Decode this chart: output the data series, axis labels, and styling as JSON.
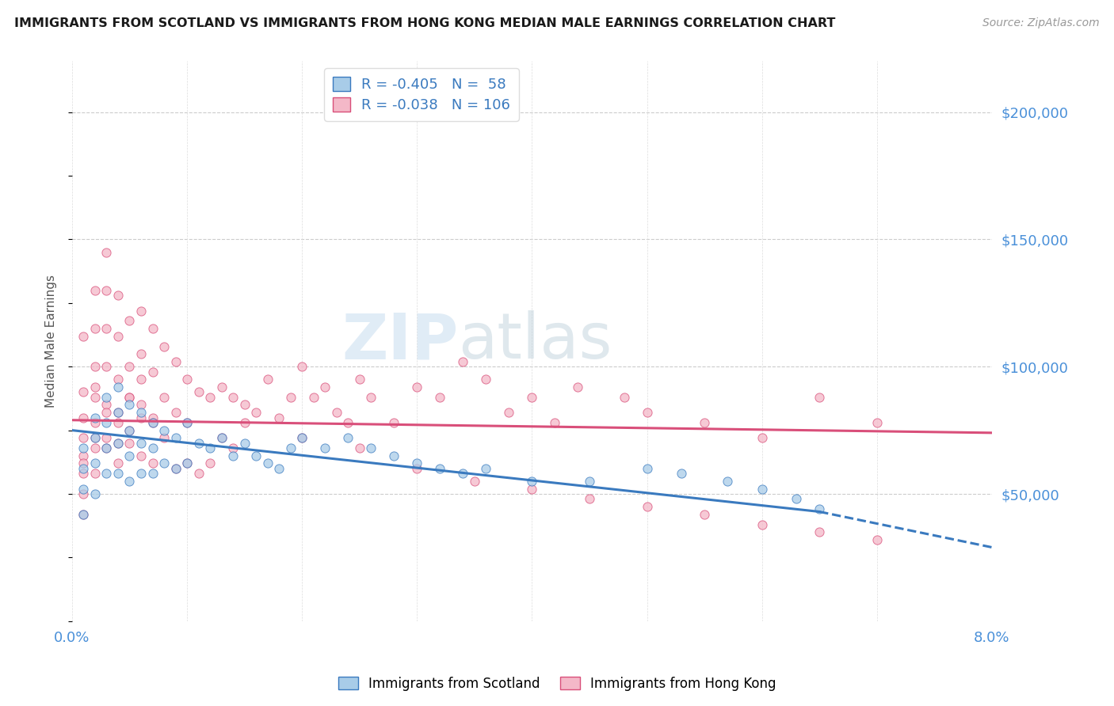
{
  "title": "IMMIGRANTS FROM SCOTLAND VS IMMIGRANTS FROM HONG KONG MEDIAN MALE EARNINGS CORRELATION CHART",
  "source": "Source: ZipAtlas.com",
  "ylabel": "Median Male Earnings",
  "x_min": 0.0,
  "x_max": 0.08,
  "y_min": 0,
  "y_max": 220000,
  "yticks": [
    0,
    50000,
    100000,
    150000,
    200000
  ],
  "xticks": [
    0.0,
    0.01,
    0.02,
    0.03,
    0.04,
    0.05,
    0.06,
    0.07,
    0.08
  ],
  "scotland_color": "#a8cce8",
  "hong_kong_color": "#f4b8c8",
  "scotland_line_color": "#3a7abf",
  "hong_kong_line_color": "#d94f7a",
  "R_scotland": -0.405,
  "N_scotland": 58,
  "R_hong_kong": -0.038,
  "N_hong_kong": 106,
  "watermark_zip": "ZIP",
  "watermark_atlas": "atlas",
  "background_color": "#ffffff",
  "scotland_line_x0": 0.0,
  "scotland_line_y0": 75000,
  "scotland_line_x1": 0.065,
  "scotland_line_y1": 43000,
  "scotland_line_dash_x1": 0.08,
  "scotland_line_dash_y1": 29000,
  "hk_line_x0": 0.0,
  "hk_line_y0": 79000,
  "hk_line_x1": 0.08,
  "hk_line_y1": 74000,
  "scotland_x": [
    0.001,
    0.001,
    0.001,
    0.001,
    0.002,
    0.002,
    0.002,
    0.002,
    0.003,
    0.003,
    0.003,
    0.003,
    0.004,
    0.004,
    0.004,
    0.004,
    0.005,
    0.005,
    0.005,
    0.005,
    0.006,
    0.006,
    0.006,
    0.007,
    0.007,
    0.007,
    0.008,
    0.008,
    0.009,
    0.009,
    0.01,
    0.01,
    0.011,
    0.012,
    0.013,
    0.014,
    0.015,
    0.016,
    0.017,
    0.018,
    0.019,
    0.02,
    0.022,
    0.024,
    0.026,
    0.028,
    0.03,
    0.032,
    0.034,
    0.036,
    0.04,
    0.045,
    0.05,
    0.053,
    0.057,
    0.06,
    0.063,
    0.065
  ],
  "scotland_y": [
    68000,
    60000,
    52000,
    42000,
    80000,
    72000,
    62000,
    50000,
    88000,
    78000,
    68000,
    58000,
    92000,
    82000,
    70000,
    58000,
    85000,
    75000,
    65000,
    55000,
    82000,
    70000,
    58000,
    78000,
    68000,
    58000,
    75000,
    62000,
    72000,
    60000,
    78000,
    62000,
    70000,
    68000,
    72000,
    65000,
    70000,
    65000,
    62000,
    60000,
    68000,
    72000,
    68000,
    72000,
    68000,
    65000,
    62000,
    60000,
    58000,
    60000,
    55000,
    55000,
    60000,
    58000,
    55000,
    52000,
    48000,
    44000
  ],
  "hong_kong_x": [
    0.001,
    0.001,
    0.001,
    0.001,
    0.001,
    0.001,
    0.001,
    0.002,
    0.002,
    0.002,
    0.002,
    0.002,
    0.002,
    0.002,
    0.003,
    0.003,
    0.003,
    0.003,
    0.003,
    0.003,
    0.004,
    0.004,
    0.004,
    0.004,
    0.004,
    0.005,
    0.005,
    0.005,
    0.005,
    0.006,
    0.006,
    0.006,
    0.007,
    0.007,
    0.007,
    0.008,
    0.008,
    0.009,
    0.009,
    0.01,
    0.01,
    0.011,
    0.012,
    0.013,
    0.014,
    0.015,
    0.016,
    0.017,
    0.018,
    0.019,
    0.02,
    0.021,
    0.022,
    0.023,
    0.024,
    0.025,
    0.026,
    0.028,
    0.03,
    0.032,
    0.034,
    0.036,
    0.038,
    0.04,
    0.042,
    0.044,
    0.048,
    0.05,
    0.055,
    0.06,
    0.065,
    0.07,
    0.001,
    0.001,
    0.002,
    0.002,
    0.003,
    0.003,
    0.004,
    0.004,
    0.005,
    0.005,
    0.006,
    0.006,
    0.006,
    0.007,
    0.007,
    0.008,
    0.009,
    0.01,
    0.011,
    0.012,
    0.013,
    0.014,
    0.015,
    0.02,
    0.025,
    0.03,
    0.035,
    0.04,
    0.045,
    0.05,
    0.055,
    0.06,
    0.065,
    0.07
  ],
  "hong_kong_y": [
    90000,
    80000,
    72000,
    65000,
    58000,
    50000,
    42000,
    130000,
    115000,
    100000,
    88000,
    78000,
    68000,
    58000,
    145000,
    130000,
    115000,
    100000,
    85000,
    72000,
    128000,
    112000,
    95000,
    82000,
    70000,
    118000,
    100000,
    88000,
    75000,
    122000,
    105000,
    85000,
    115000,
    98000,
    80000,
    108000,
    88000,
    102000,
    82000,
    95000,
    78000,
    90000,
    88000,
    92000,
    88000,
    85000,
    82000,
    95000,
    80000,
    88000,
    100000,
    88000,
    92000,
    82000,
    78000,
    95000,
    88000,
    78000,
    92000,
    88000,
    102000,
    95000,
    82000,
    88000,
    78000,
    92000,
    88000,
    82000,
    78000,
    72000,
    88000,
    78000,
    112000,
    62000,
    92000,
    72000,
    82000,
    68000,
    78000,
    62000,
    88000,
    70000,
    80000,
    65000,
    95000,
    78000,
    62000,
    72000,
    60000,
    62000,
    58000,
    62000,
    72000,
    68000,
    78000,
    72000,
    68000,
    60000,
    55000,
    52000,
    48000,
    45000,
    42000,
    38000,
    35000,
    32000
  ]
}
